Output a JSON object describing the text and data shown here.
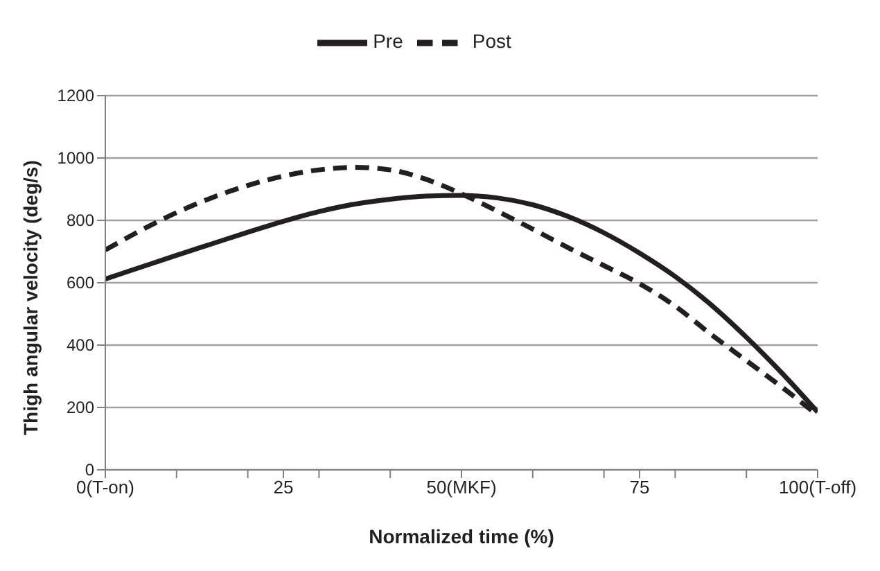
{
  "chart_data": {
    "type": "line",
    "xlabel": "Normalized   time (%)",
    "ylabel": "Thigh angular   velocity (deg/s)",
    "x": [
      0,
      5,
      10,
      15,
      20,
      25,
      30,
      35,
      40,
      45,
      50,
      55,
      60,
      65,
      70,
      75,
      80,
      85,
      90,
      95,
      100
    ],
    "series": [
      {
        "name": "Pre",
        "color": "#231f20",
        "line_style": "solid",
        "values": [
          612,
          650,
          688,
          725,
          762,
          797,
          828,
          852,
          868,
          878,
          880,
          872,
          850,
          812,
          760,
          695,
          620,
          530,
          425,
          310,
          185
        ]
      },
      {
        "name": "Post",
        "color": "#231f20",
        "line_style": "dashed",
        "values": [
          705,
          768,
          825,
          873,
          912,
          942,
          962,
          970,
          962,
          932,
          885,
          830,
          772,
          712,
          655,
          597,
          525,
          435,
          350,
          265,
          175
        ]
      }
    ],
    "xlim": [
      0,
      100
    ],
    "xticks": [
      {
        "value": 0,
        "label": "0(T-on)"
      },
      {
        "value": 10,
        "label": null
      },
      {
        "value": 20,
        "label": null
      },
      25,
      {
        "value": 30,
        "label": null
      },
      {
        "value": 40,
        "label": null
      },
      {
        "value": 50,
        "label": "50(MKF)"
      },
      {
        "value": 60,
        "label": null
      },
      {
        "value": 70,
        "label": null
      },
      75,
      {
        "value": 80,
        "label": null
      },
      {
        "value": 90,
        "label": null
      },
      {
        "value": 100,
        "label": "100(T-off)"
      }
    ],
    "ylim": [
      0,
      1200
    ],
    "yticks": [
      0,
      200,
      400,
      600,
      800,
      1000,
      1200
    ],
    "grid": "y",
    "legend": "top",
    "marker": "none"
  }
}
